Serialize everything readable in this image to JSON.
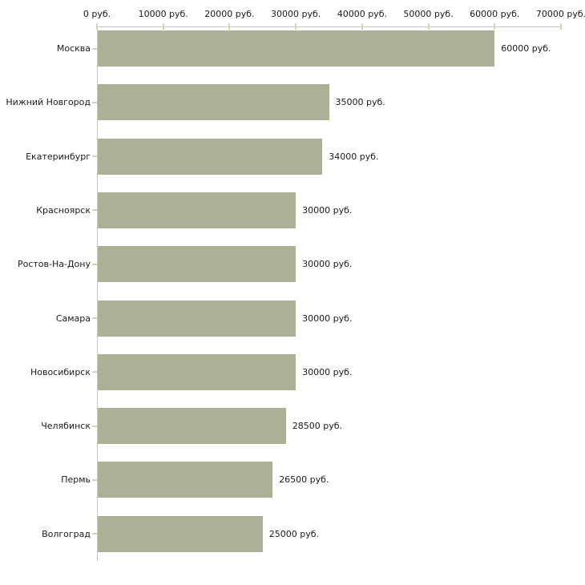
{
  "chart_data": {
    "type": "bar",
    "orientation": "horizontal",
    "title": "",
    "xlabel": "",
    "ylabel": "",
    "categories": [
      "Москва",
      "Нижний Новгород",
      "Екатеринбург",
      "Красноярск",
      "Ростов-На-Дону",
      "Самара",
      "Новосибирск",
      "Челябинск",
      "Пермь",
      "Волгоград"
    ],
    "values": [
      60000,
      35000,
      34000,
      30000,
      30000,
      30000,
      30000,
      28500,
      26500,
      25000
    ],
    "value_labels": [
      "60000 руб.",
      "35000 руб.",
      "34000 руб.",
      "30000 руб.",
      "30000 руб.",
      "30000 руб.",
      "30000 руб.",
      "28500 руб.",
      "26500 руб.",
      "25000 руб."
    ],
    "xlim": [
      0,
      70000
    ],
    "x_ticks": [
      0,
      10000,
      20000,
      30000,
      40000,
      50000,
      60000,
      70000
    ],
    "x_tick_labels": [
      "0 руб.",
      "10000 руб.",
      "20000 руб.",
      "30000 руб.",
      "40000 руб.",
      "50000 руб.",
      "60000 руб.",
      "70000 руб."
    ],
    "grid": false,
    "legend": false,
    "axis_position": "top"
  },
  "colors": {
    "bar": "#abb194",
    "axis_line": "#c6c6c6",
    "tick_mark": "#d4d4b0",
    "text": "#1a1a1a",
    "background": "#ffffff"
  }
}
